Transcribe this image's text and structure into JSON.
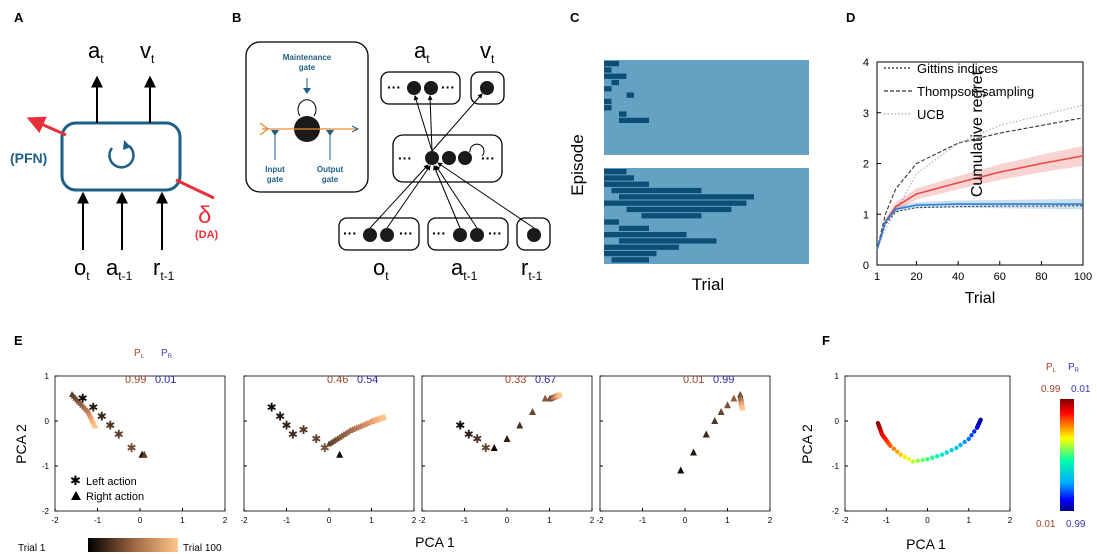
{
  "panels": {
    "A": {
      "letter": "A",
      "out": [
        "a",
        "v"
      ],
      "out_sub": [
        "t",
        "t"
      ],
      "in": [
        "o",
        "a",
        "r"
      ],
      "in_sub": [
        "t",
        "t-1",
        "t-1"
      ],
      "pfn": "(PFN)",
      "delta": "δ",
      "da": "(DA)"
    },
    "B": {
      "letter": "B",
      "maintenance": [
        "Maintenance",
        "gate"
      ],
      "input": [
        "Input",
        "gate"
      ],
      "output": [
        "Output",
        "gate"
      ],
      "out": [
        "a",
        "v"
      ],
      "out_sub": [
        "t",
        "t"
      ],
      "in": [
        "o",
        "a",
        "r"
      ],
      "in_sub": [
        "t",
        "t-1",
        "t-1"
      ]
    },
    "C": {
      "letter": "C",
      "ylabel": "Episode",
      "xlabel": "Trial"
    },
    "D": {
      "letter": "D"
    },
    "E": {
      "letter": "E",
      "pl": "P",
      "pl_sub": "L",
      "pr": "P",
      "pr_sub": "R",
      "probs": [
        [
          "0.99",
          "0.01"
        ],
        [
          "0.46",
          "0.54"
        ],
        [
          "0.33",
          "0.67"
        ],
        [
          "0.01",
          "0.99"
        ]
      ],
      "ylabel": "PCA 2",
      "xlabel": "PCA 1",
      "legend": [
        "Left action",
        "Right action"
      ],
      "trial_start": "Trial 1",
      "trial_end": "Trial 100"
    },
    "F": {
      "letter": "F",
      "ylabel": "PCA 2",
      "xlabel": "PCA 1",
      "pl": "P",
      "pl_sub": "L",
      "pr": "P",
      "pr_sub": "R",
      "cb_top": [
        "0.99",
        "0.01"
      ],
      "cb_bottom": [
        "0.01",
        "0.99"
      ]
    }
  },
  "chart_data": [
    {
      "type": "line",
      "panel": "D",
      "title": "",
      "xlabel": "Trial",
      "ylabel": "Cumulative regret",
      "xlim": [
        1,
        100
      ],
      "ylim": [
        0,
        4
      ],
      "xticks": [
        "1",
        "20",
        "40",
        "60",
        "80",
        "100"
      ],
      "yticks": [
        "0",
        "1",
        "2",
        "3",
        "4"
      ],
      "legend_position": "top-left",
      "series": [
        {
          "name": "Gittins indices",
          "style": "dotted",
          "color": "#222222",
          "x": [
            1,
            5,
            10,
            20,
            40,
            60,
            80,
            100
          ],
          "y": [
            0.3,
            0.8,
            1.05,
            1.13,
            1.15,
            1.16,
            1.16,
            1.17
          ]
        },
        {
          "name": "Thompson sampling",
          "style": "dashed",
          "color": "#333333",
          "x": [
            1,
            5,
            10,
            20,
            40,
            60,
            80,
            100
          ],
          "y": [
            0.3,
            1.0,
            1.5,
            2.0,
            2.4,
            2.6,
            2.75,
            2.9
          ]
        },
        {
          "name": "UCB",
          "style": "dotted-light",
          "color": "#aaaaaa",
          "x": [
            1,
            5,
            10,
            20,
            40,
            60,
            80,
            100
          ],
          "y": [
            0.3,
            0.7,
            1.05,
            1.8,
            2.4,
            2.75,
            2.95,
            3.15
          ]
        },
        {
          "style": "solid",
          "color": "#e84a4a",
          "band": 0.15,
          "x": [
            1,
            5,
            10,
            20,
            40,
            60,
            80,
            100
          ],
          "y": [
            0.3,
            0.85,
            1.15,
            1.4,
            1.62,
            1.83,
            2.0,
            2.15
          ]
        },
        {
          "style": "solid",
          "color": "#2f7fd0",
          "band": 0.08,
          "x": [
            1,
            5,
            10,
            20,
            40,
            60,
            80,
            100
          ],
          "y": [
            0.3,
            0.85,
            1.1,
            1.18,
            1.2,
            1.2,
            1.2,
            1.2
          ]
        }
      ]
    },
    {
      "type": "scatter",
      "panel": "E",
      "xlabel": "PCA 1",
      "ylabel": "PCA 2",
      "xlim": [
        -2,
        2
      ],
      "ylim": [
        -2,
        1
      ],
      "xticks": [
        "-2",
        "-1",
        "0",
        "1",
        "2"
      ],
      "yticks": [
        "1",
        "0",
        "-1",
        "-2"
      ]
    },
    {
      "type": "scatter",
      "panel": "F",
      "xlabel": "PCA 1",
      "ylabel": "PCA 2",
      "xlim": [
        -2,
        2
      ],
      "ylim": [
        -2,
        1
      ],
      "xticks": [
        "-2",
        "-1",
        "0",
        "1",
        "2"
      ],
      "yticks": [
        "1",
        "0",
        "-1",
        "-2"
      ]
    }
  ]
}
